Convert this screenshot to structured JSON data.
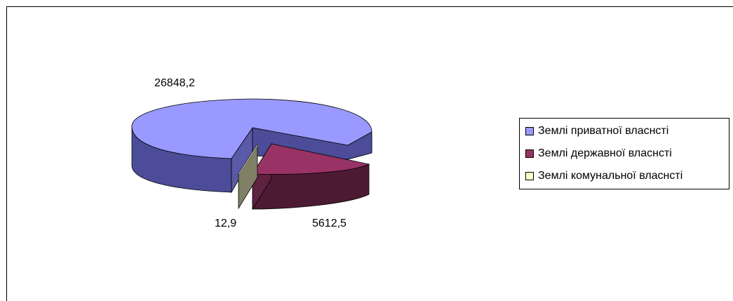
{
  "chart_data": {
    "type": "pie",
    "categories": [
      "Землі приватної власнсті",
      "Землі державної власнсті",
      "Землі комунальної власнсті"
    ],
    "values": [
      26848.2,
      5612.5,
      12.9
    ],
    "data_labels": [
      "26848,2",
      "5612,5",
      "12,9"
    ],
    "colors": [
      "#9999ff",
      "#993366",
      "#ffffcc"
    ],
    "side_colors": [
      "#4c4c99",
      "#4d1a33",
      "#808066"
    ],
    "legend": {
      "placement": "right",
      "items": [
        {
          "label": "Землі приватної власнсті",
          "color": "#9999ff"
        },
        {
          "label": "Землі державної власнсті",
          "color": "#993366"
        },
        {
          "label": "Землі комунальної власнсті",
          "color": "#ffffcc"
        }
      ]
    },
    "exploded": true,
    "three_d": true
  }
}
